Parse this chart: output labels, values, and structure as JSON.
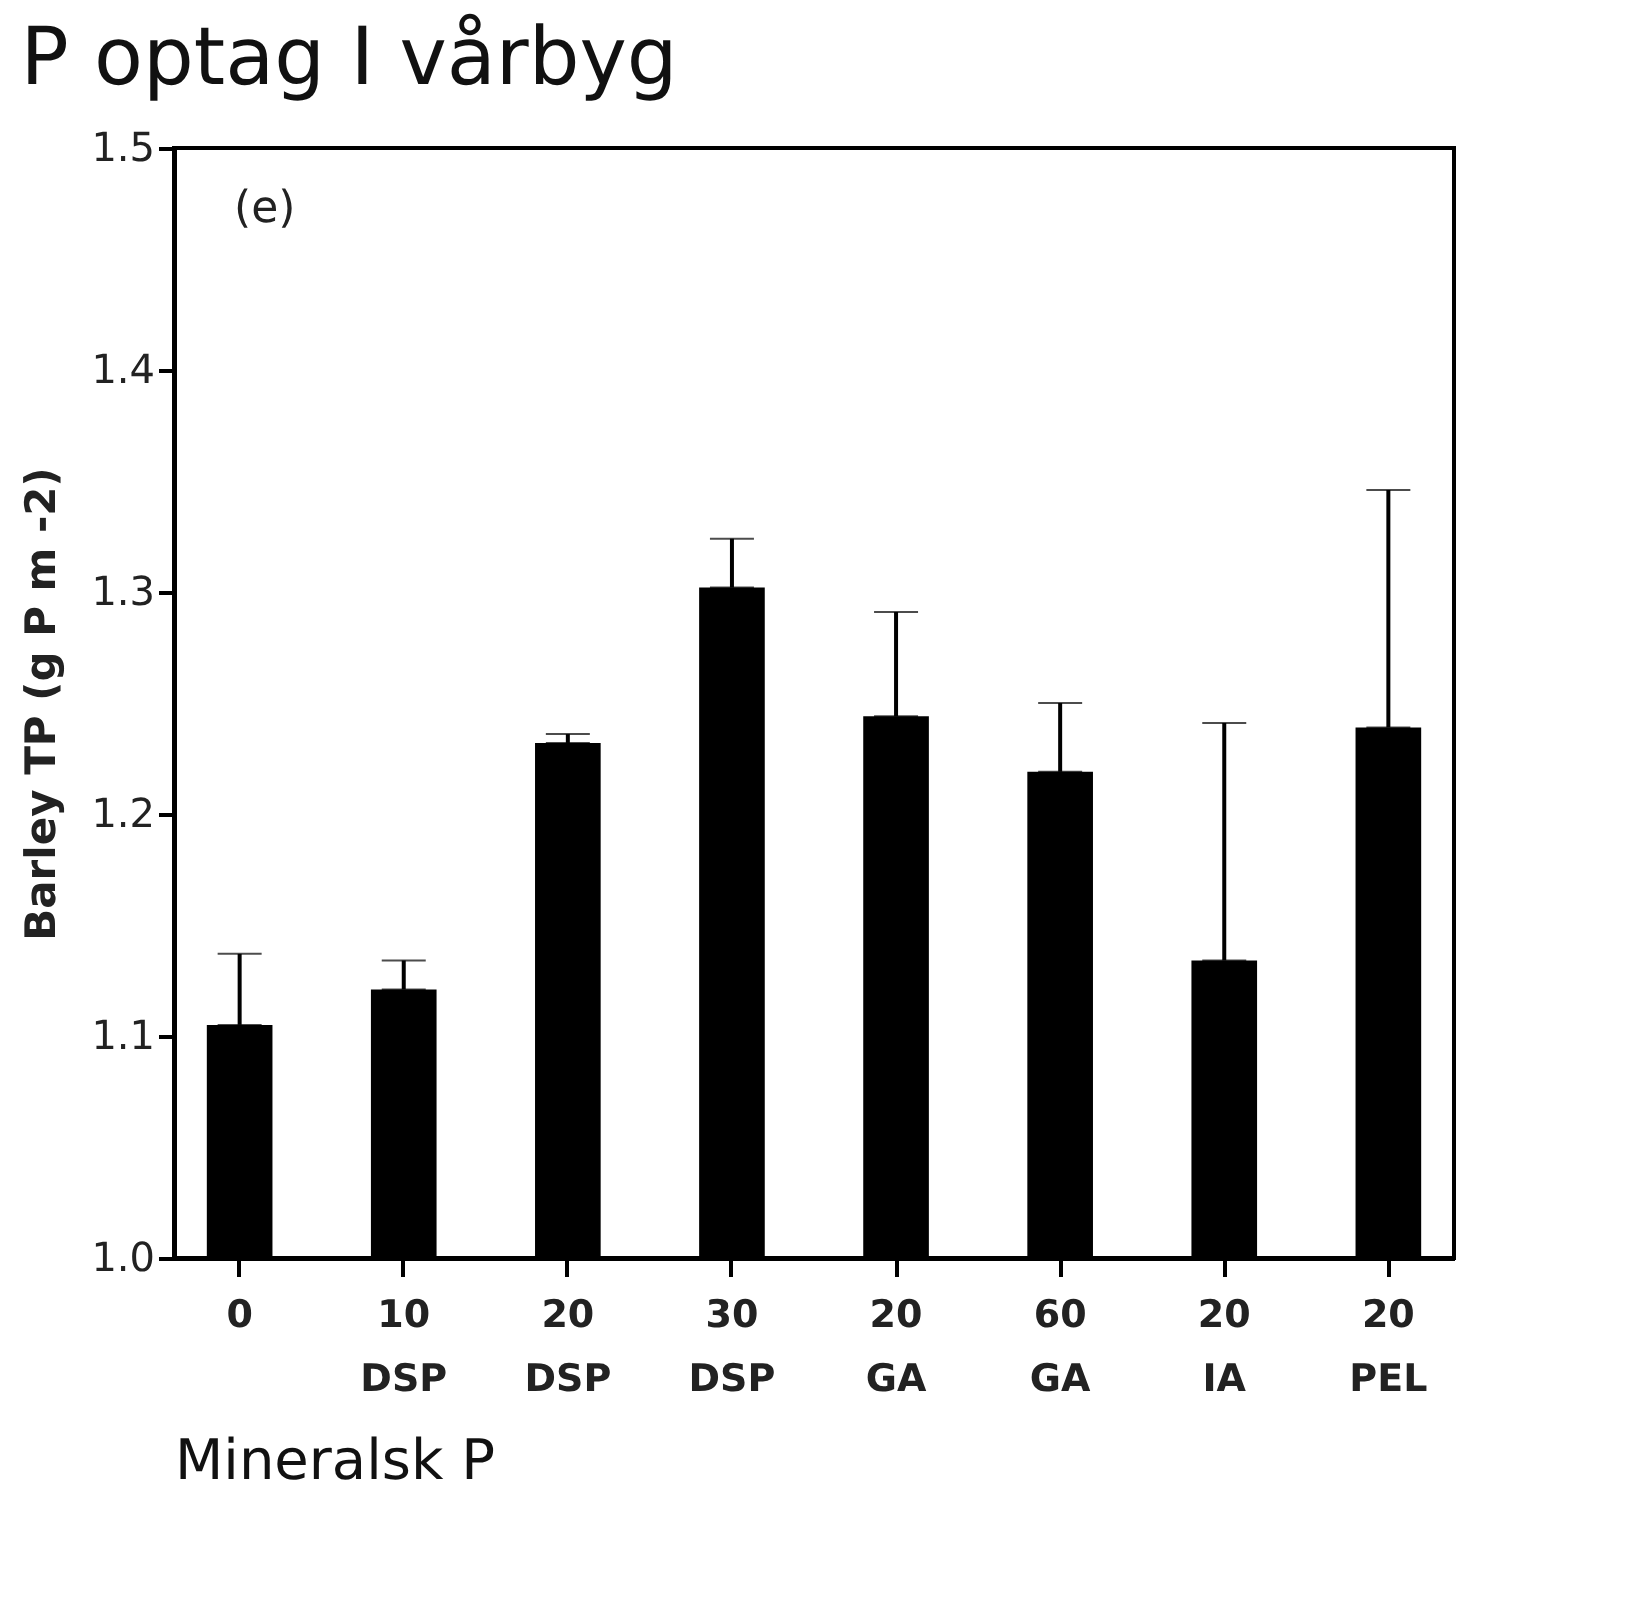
{
  "chart_data": {
    "type": "bar",
    "title": "P optag I vårbyg",
    "xlabel": "Mineralsk P",
    "ylabel": "Barley TP (g P m -2)",
    "categories": [
      "0",
      "10\nDSP",
      "20\nDSP",
      "30\nDSP",
      "20\nGA",
      "60\nGA",
      "20\nIA",
      "20\nPEL"
    ],
    "values": [
      1.105,
      1.121,
      1.232,
      1.302,
      1.244,
      1.219,
      1.134,
      1.239
    ],
    "errors": [
      [
        1.105,
        1.137
      ],
      [
        1.121,
        1.134
      ],
      [
        1.232,
        1.236
      ],
      [
        1.302,
        1.324
      ],
      [
        1.244,
        1.291
      ],
      [
        1.219,
        1.25
      ],
      [
        1.134,
        1.241
      ],
      [
        1.239,
        1.346
      ]
    ],
    "color": "#000000",
    "ylim": [
      1.0,
      1.5
    ],
    "yticks": [
      {
        "value": 1.0,
        "label": "1.0"
      },
      1.1,
      1.2,
      1.3,
      1.4,
      1.5
    ],
    "grid": false,
    "annotations": [
      "(e)"
    ]
  }
}
